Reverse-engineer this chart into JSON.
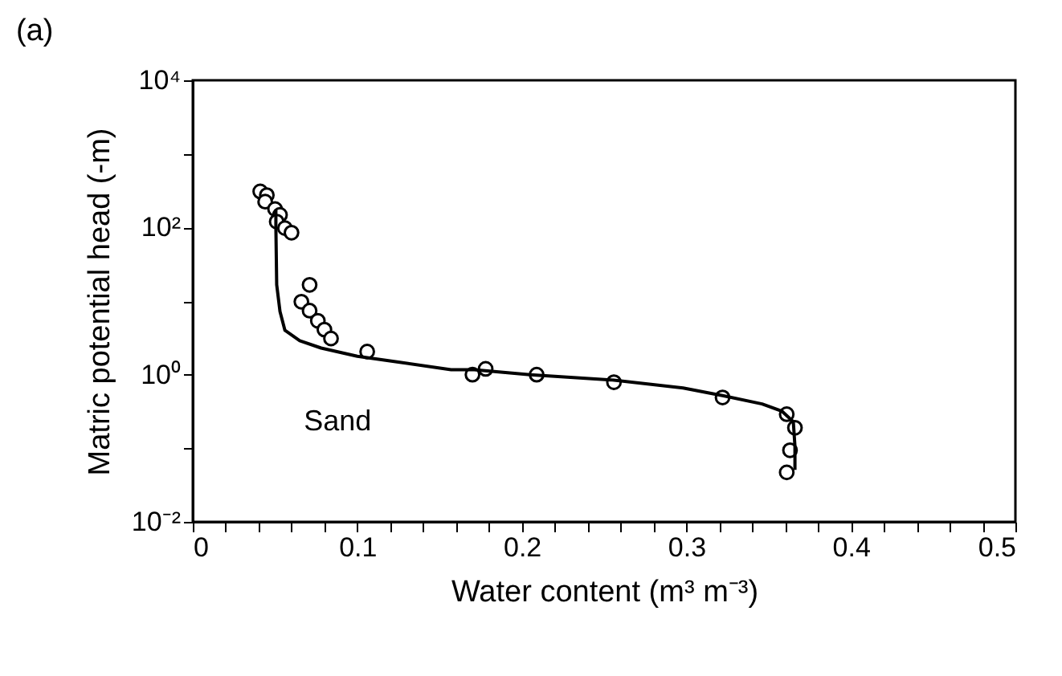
{
  "chart_data": {
    "type": "scatter",
    "title": "(a)",
    "xlabel": "Water content (m³ m⁻³)",
    "ylabel": "Matric potential head (-m)",
    "log": "y",
    "grid": false,
    "marker": "circle",
    "xlim": [
      0,
      0.5
    ],
    "ylim": [
      0.01,
      10000
    ],
    "xticks": [
      0,
      {
        "value": 0.02,
        "label": null
      },
      {
        "value": 0.04,
        "label": null
      },
      {
        "value": 0.06,
        "label": null
      },
      {
        "value": 0.08,
        "label": null
      },
      0.1,
      {
        "value": 0.12,
        "label": null
      },
      {
        "value": 0.14,
        "label": null
      },
      {
        "value": 0.16,
        "label": null
      },
      {
        "value": 0.18,
        "label": null
      },
      0.2,
      {
        "value": 0.22,
        "label": null
      },
      {
        "value": 0.24,
        "label": null
      },
      {
        "value": 0.26,
        "label": null
      },
      {
        "value": 0.28,
        "label": null
      },
      0.3,
      {
        "value": 0.32,
        "label": null
      },
      {
        "value": 0.34,
        "label": null
      },
      {
        "value": 0.36,
        "label": null
      },
      {
        "value": 0.38,
        "label": null
      },
      0.4,
      {
        "value": 0.42,
        "label": null
      },
      {
        "value": 0.44,
        "label": null
      },
      {
        "value": 0.46,
        "label": null
      },
      {
        "value": 0.48,
        "label": null
      },
      0.5
    ],
    "yticks": [
      {
        "value": 0.01,
        "label": "10⁻²"
      },
      {
        "value": 0.1,
        "label": null
      },
      {
        "value": 1,
        "label": "10⁰"
      },
      {
        "value": 10,
        "label": null
      },
      {
        "value": 100,
        "label": "10²"
      },
      {
        "value": 1000,
        "label": null
      },
      {
        "value": 10000,
        "label": "10⁴"
      }
    ],
    "annotations": [
      "Sand"
    ],
    "series": [
      {
        "color": "#000000",
        "x": [
          0.041,
          0.045,
          0.044,
          0.05,
          0.053,
          0.051,
          0.056,
          0.06,
          0.071,
          0.066,
          0.071,
          0.076,
          0.08,
          0.084,
          0.106,
          0.17,
          0.178,
          0.209,
          0.256,
          0.322,
          0.361,
          0.366,
          0.363,
          0.361
        ],
        "values": [
          309,
          275,
          224,
          178,
          148,
          120,
          98,
          85,
          16.6,
          9.8,
          7.4,
          5.4,
          4.1,
          3.1,
          2.06,
          1.0,
          1.2,
          1.0,
          0.79,
          0.49,
          0.29,
          0.19,
          0.094,
          0.047
        ]
      },
      {
        "type": "line",
        "color": "#000000",
        "marker": "none",
        "line_style": "solid",
        "x": [
          0.0505,
          0.0505,
          0.051,
          0.053,
          0.056,
          0.065,
          0.078,
          0.1,
          0.125,
          0.157,
          0.171,
          0.205,
          0.254,
          0.298,
          0.322,
          0.346,
          0.358,
          0.365,
          0.366,
          0.366
        ],
        "values": [
          174,
          100,
          16.6,
          7.2,
          4.0,
          2.9,
          2.3,
          1.78,
          1.48,
          1.17,
          1.17,
          1.0,
          0.85,
          0.66,
          0.52,
          0.4,
          0.32,
          0.23,
          0.107,
          0.051
        ]
      }
    ]
  }
}
